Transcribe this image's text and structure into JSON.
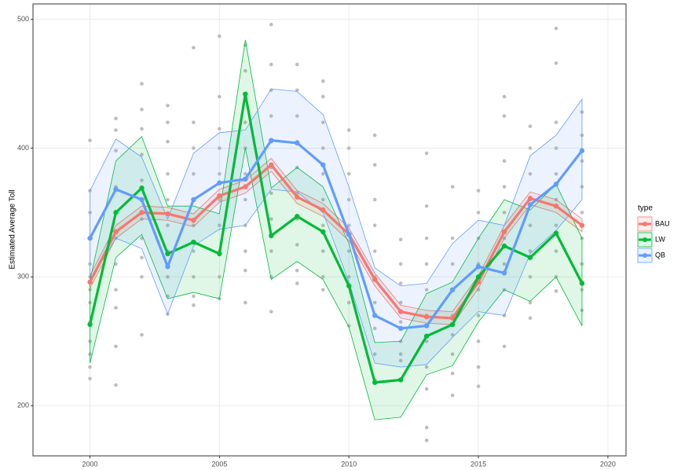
{
  "chart_data": {
    "type": "line",
    "y_label": "Estimated Average Toll",
    "legend_title": "type",
    "legend_position": "right",
    "grid": true,
    "xlim": [
      1997.8,
      2020.7
    ],
    "ylim": [
      161,
      512
    ],
    "xticks": [
      2000,
      2005,
      2010,
      2015,
      2020
    ],
    "yticks": [
      200,
      300,
      400,
      500
    ],
    "x": [
      2000,
      2001,
      2002,
      2003,
      2004,
      2005,
      2006,
      2007,
      2008,
      2009,
      2010,
      2011,
      2012,
      2013,
      2014,
      2015,
      2016,
      2017,
      2018,
      2019
    ],
    "series": [
      {
        "name": "BAU",
        "color": "#F8766D",
        "values": [
          296,
          335,
          350,
          349,
          344,
          363,
          370,
          387,
          362,
          352,
          333,
          298,
          273,
          269,
          268,
          296,
          335,
          361,
          355,
          340
        ],
        "lower": [
          291,
          330,
          345,
          344,
          339,
          358,
          365,
          382,
          357,
          347,
          328,
          293,
          268,
          264,
          263,
          291,
          330,
          356,
          350,
          335
        ],
        "upper": [
          301,
          340,
          355,
          354,
          349,
          368,
          375,
          392,
          367,
          357,
          338,
          303,
          278,
          274,
          273,
          301,
          340,
          366,
          360,
          345
        ]
      },
      {
        "name": "LW",
        "color": "#00BA38",
        "values": [
          263,
          350,
          369,
          318,
          327,
          318,
          442,
          332,
          347,
          335,
          293,
          218,
          220,
          254,
          263,
          300,
          324,
          315,
          334,
          295
        ],
        "lower": [
          233,
          315,
          333,
          283,
          288,
          283,
          400,
          298,
          312,
          298,
          261,
          189,
          191,
          224,
          231,
          265,
          290,
          281,
          300,
          262
        ],
        "upper": [
          297,
          390,
          409,
          355,
          355,
          349,
          484,
          369,
          385,
          370,
          326,
          249,
          250,
          287,
          296,
          330,
          360,
          352,
          372,
          330
        ]
      },
      {
        "name": "QB",
        "color": "#619CFF",
        "values": [
          330,
          368,
          360,
          308,
          360,
          373,
          376,
          406,
          404,
          387,
          333,
          270,
          260,
          262,
          290,
          308,
          303,
          356,
          372,
          398
        ],
        "lower": [
          297,
          330,
          322,
          271,
          324,
          337,
          340,
          368,
          366,
          350,
          296,
          233,
          230,
          232,
          253,
          273,
          270,
          318,
          336,
          360
        ],
        "upper": [
          367,
          407,
          393,
          345,
          396,
          412,
          414,
          446,
          444,
          426,
          370,
          307,
          293,
          295,
          326,
          344,
          340,
          394,
          410,
          438
        ]
      }
    ],
    "points_color": "#bdbdbd",
    "points": [
      {
        "x": 2000,
        "values": [
          406,
          367,
          350,
          330,
          310,
          300,
          290,
          280,
          265,
          250,
          240,
          230,
          221
        ]
      },
      {
        "x": 2001,
        "values": [
          423,
          414,
          398,
          370,
          350,
          330,
          310,
          290,
          276,
          246,
          216
        ]
      },
      {
        "x": 2002,
        "values": [
          450,
          430,
          415,
          395,
          375,
          360,
          345,
          330,
          315,
          300,
          255
        ]
      },
      {
        "x": 2003,
        "values": [
          433,
          420,
          405,
          380,
          360,
          340,
          320,
          300,
          285,
          271
        ]
      },
      {
        "x": 2004,
        "values": [
          478,
          420,
          400,
          380,
          360,
          340,
          320,
          300,
          285,
          278
        ]
      },
      {
        "x": 2005,
        "values": [
          487,
          440,
          415,
          400,
          380,
          360,
          340,
          320,
          300,
          283
        ]
      },
      {
        "x": 2006,
        "values": [
          480,
          460,
          440,
          420,
          400,
          380,
          360,
          340,
          320,
          305,
          280
        ]
      },
      {
        "x": 2007,
        "values": [
          496,
          465,
          445,
          425,
          405,
          385,
          365,
          345,
          320,
          300,
          273
        ]
      },
      {
        "x": 2008,
        "values": [
          465,
          445,
          425,
          405,
          385,
          365,
          345,
          325,
          305,
          295
        ]
      },
      {
        "x": 2009,
        "values": [
          452,
          440,
          420,
          400,
          380,
          360,
          340,
          320,
          300,
          290
        ]
      },
      {
        "x": 2010,
        "values": [
          414,
          400,
          380,
          360,
          340,
          320,
          300,
          280,
          262
        ]
      },
      {
        "x": 2011,
        "values": [
          410,
          387,
          360,
          340,
          320,
          300,
          280,
          260,
          240,
          220
        ]
      },
      {
        "x": 2012,
        "values": [
          329,
          310,
          295,
          280,
          265,
          250,
          240,
          235
        ]
      },
      {
        "x": 2013,
        "values": [
          396,
          355,
          330,
          310,
          290,
          270,
          250,
          230,
          213,
          183,
          173
        ]
      },
      {
        "x": 2014,
        "values": [
          370,
          330,
          310,
          290,
          270,
          255,
          240,
          225,
          208
        ]
      },
      {
        "x": 2015,
        "values": [
          367,
          350,
          330,
          310,
          290,
          270,
          250,
          230,
          215
        ]
      },
      {
        "x": 2016,
        "values": [
          440,
          425,
          390,
          370,
          350,
          330,
          310,
          290,
          270,
          246
        ]
      },
      {
        "x": 2017,
        "values": [
          417,
          400,
          380,
          360,
          340,
          320,
          300,
          280,
          268
        ]
      },
      {
        "x": 2018,
        "values": [
          493,
          466,
          420,
          400,
          380,
          360,
          340,
          320,
          300,
          289
        ]
      },
      {
        "x": 2019,
        "values": [
          428,
          410,
          390,
          370,
          350,
          330,
          310,
          290,
          274
        ]
      }
    ]
  }
}
